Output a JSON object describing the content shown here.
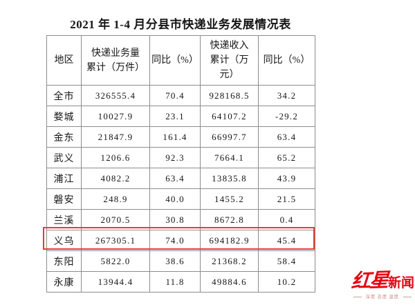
{
  "title": "2021 年 1-4 月分县市快递业务发展情况表",
  "table": {
    "headers": [
      "地区",
      "快递业务量\n累计（万件）",
      "同比（%）",
      "快递收入\n累计（万\n元）",
      "同比（%）"
    ],
    "rows": [
      [
        "全市",
        "326555.4",
        "70.4",
        "928168.5",
        "34.2"
      ],
      [
        "婺城",
        "10027.9",
        "23.1",
        "64107.2",
        "-29.2"
      ],
      [
        "金东",
        "21847.9",
        "161.4",
        "66997.7",
        "63.4"
      ],
      [
        "武义",
        "1206.6",
        "92.3",
        "7664.1",
        "65.2"
      ],
      [
        "浦江",
        "4082.2",
        "63.4",
        "13835.8",
        "43.9"
      ],
      [
        "磐安",
        "248.9",
        "40.0",
        "1455.2",
        "21.5"
      ],
      [
        "兰溪",
        "2070.5",
        "30.8",
        "8672.8",
        "0.4"
      ],
      [
        "义乌",
        "267305.1",
        "74.0",
        "694182.9",
        "45.4"
      ],
      [
        "东阳",
        "5822.0",
        "38.6",
        "21368.2",
        "58.4"
      ],
      [
        "永康",
        "13944.4",
        "11.8",
        "49884.6",
        "10.2"
      ]
    ],
    "highlighted_region": "义乌",
    "highlight_color": "#ee372b"
  },
  "logo": {
    "brand_script": "红星",
    "brand_bold": "新闻",
    "tagline": "深度 态度 温度",
    "brand_color": "#e60012"
  }
}
